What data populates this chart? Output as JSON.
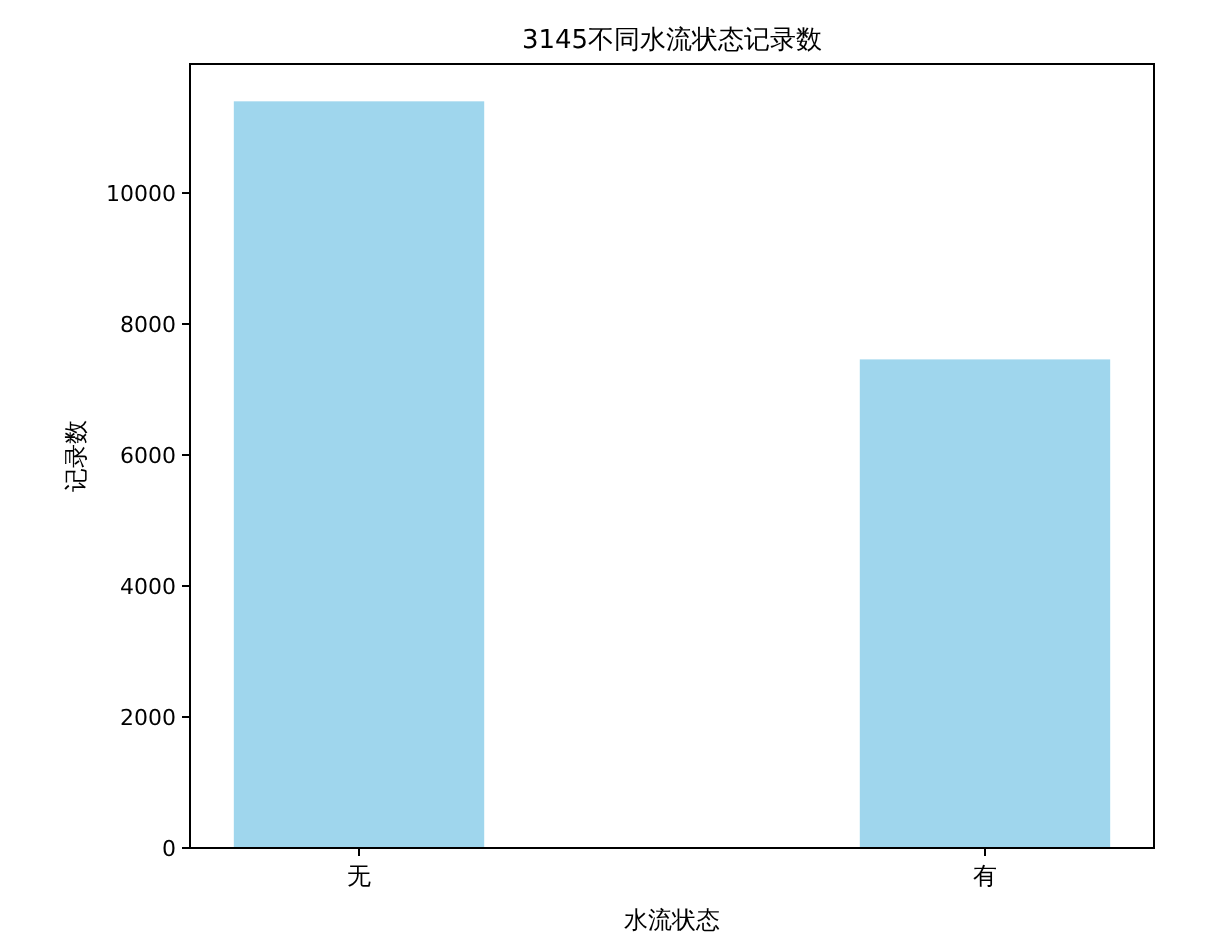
{
  "chart_data": {
    "type": "bar",
    "title": "3145不同水流状态记录数",
    "xlabel": "水流状态",
    "ylabel": "记录数",
    "categories": [
      "无",
      "有"
    ],
    "values": [
      11400,
      7460
    ],
    "color": "#9fd6ed",
    "ylim": [
      0,
      11970
    ],
    "yticks": [
      0,
      2000,
      4000,
      6000,
      8000,
      10000
    ],
    "grid": false
  }
}
